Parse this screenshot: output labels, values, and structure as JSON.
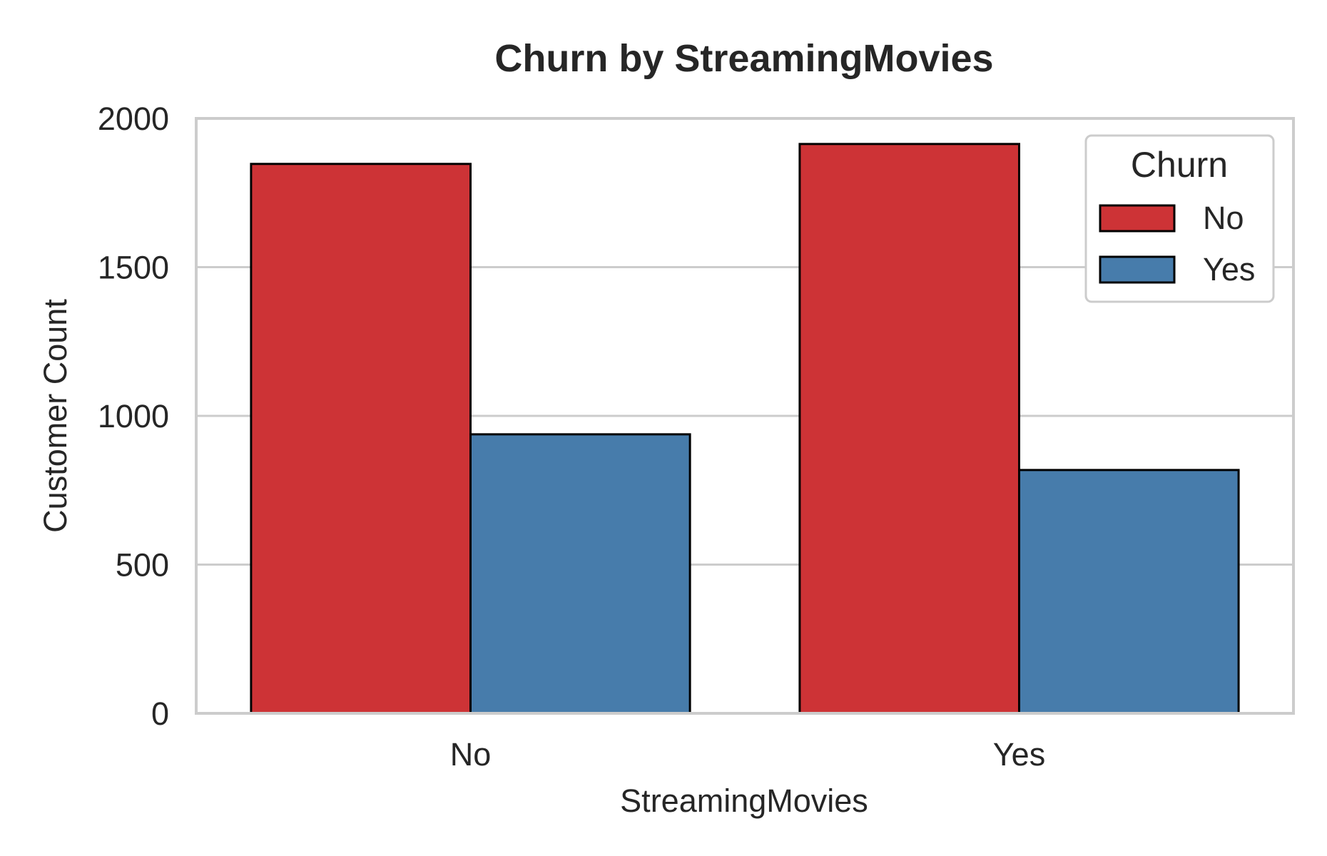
{
  "chart_data": {
    "type": "bar",
    "title": "Churn by StreamingMovies",
    "xlabel": "StreamingMovies",
    "ylabel": "Customer Count",
    "categories": [
      "No",
      "Yes"
    ],
    "series": [
      {
        "name": "No",
        "color": "#cd3336",
        "values": [
          1847,
          1914
        ]
      },
      {
        "name": "Yes",
        "color": "#477cab",
        "values": [
          938,
          818
        ]
      }
    ],
    "ylim": [
      0,
      2000
    ],
    "yticks": [
      "0",
      "500",
      "1000",
      "1500",
      "2000"
    ],
    "grid": true,
    "legend": {
      "title": "Churn",
      "placement": "top-right"
    }
  }
}
